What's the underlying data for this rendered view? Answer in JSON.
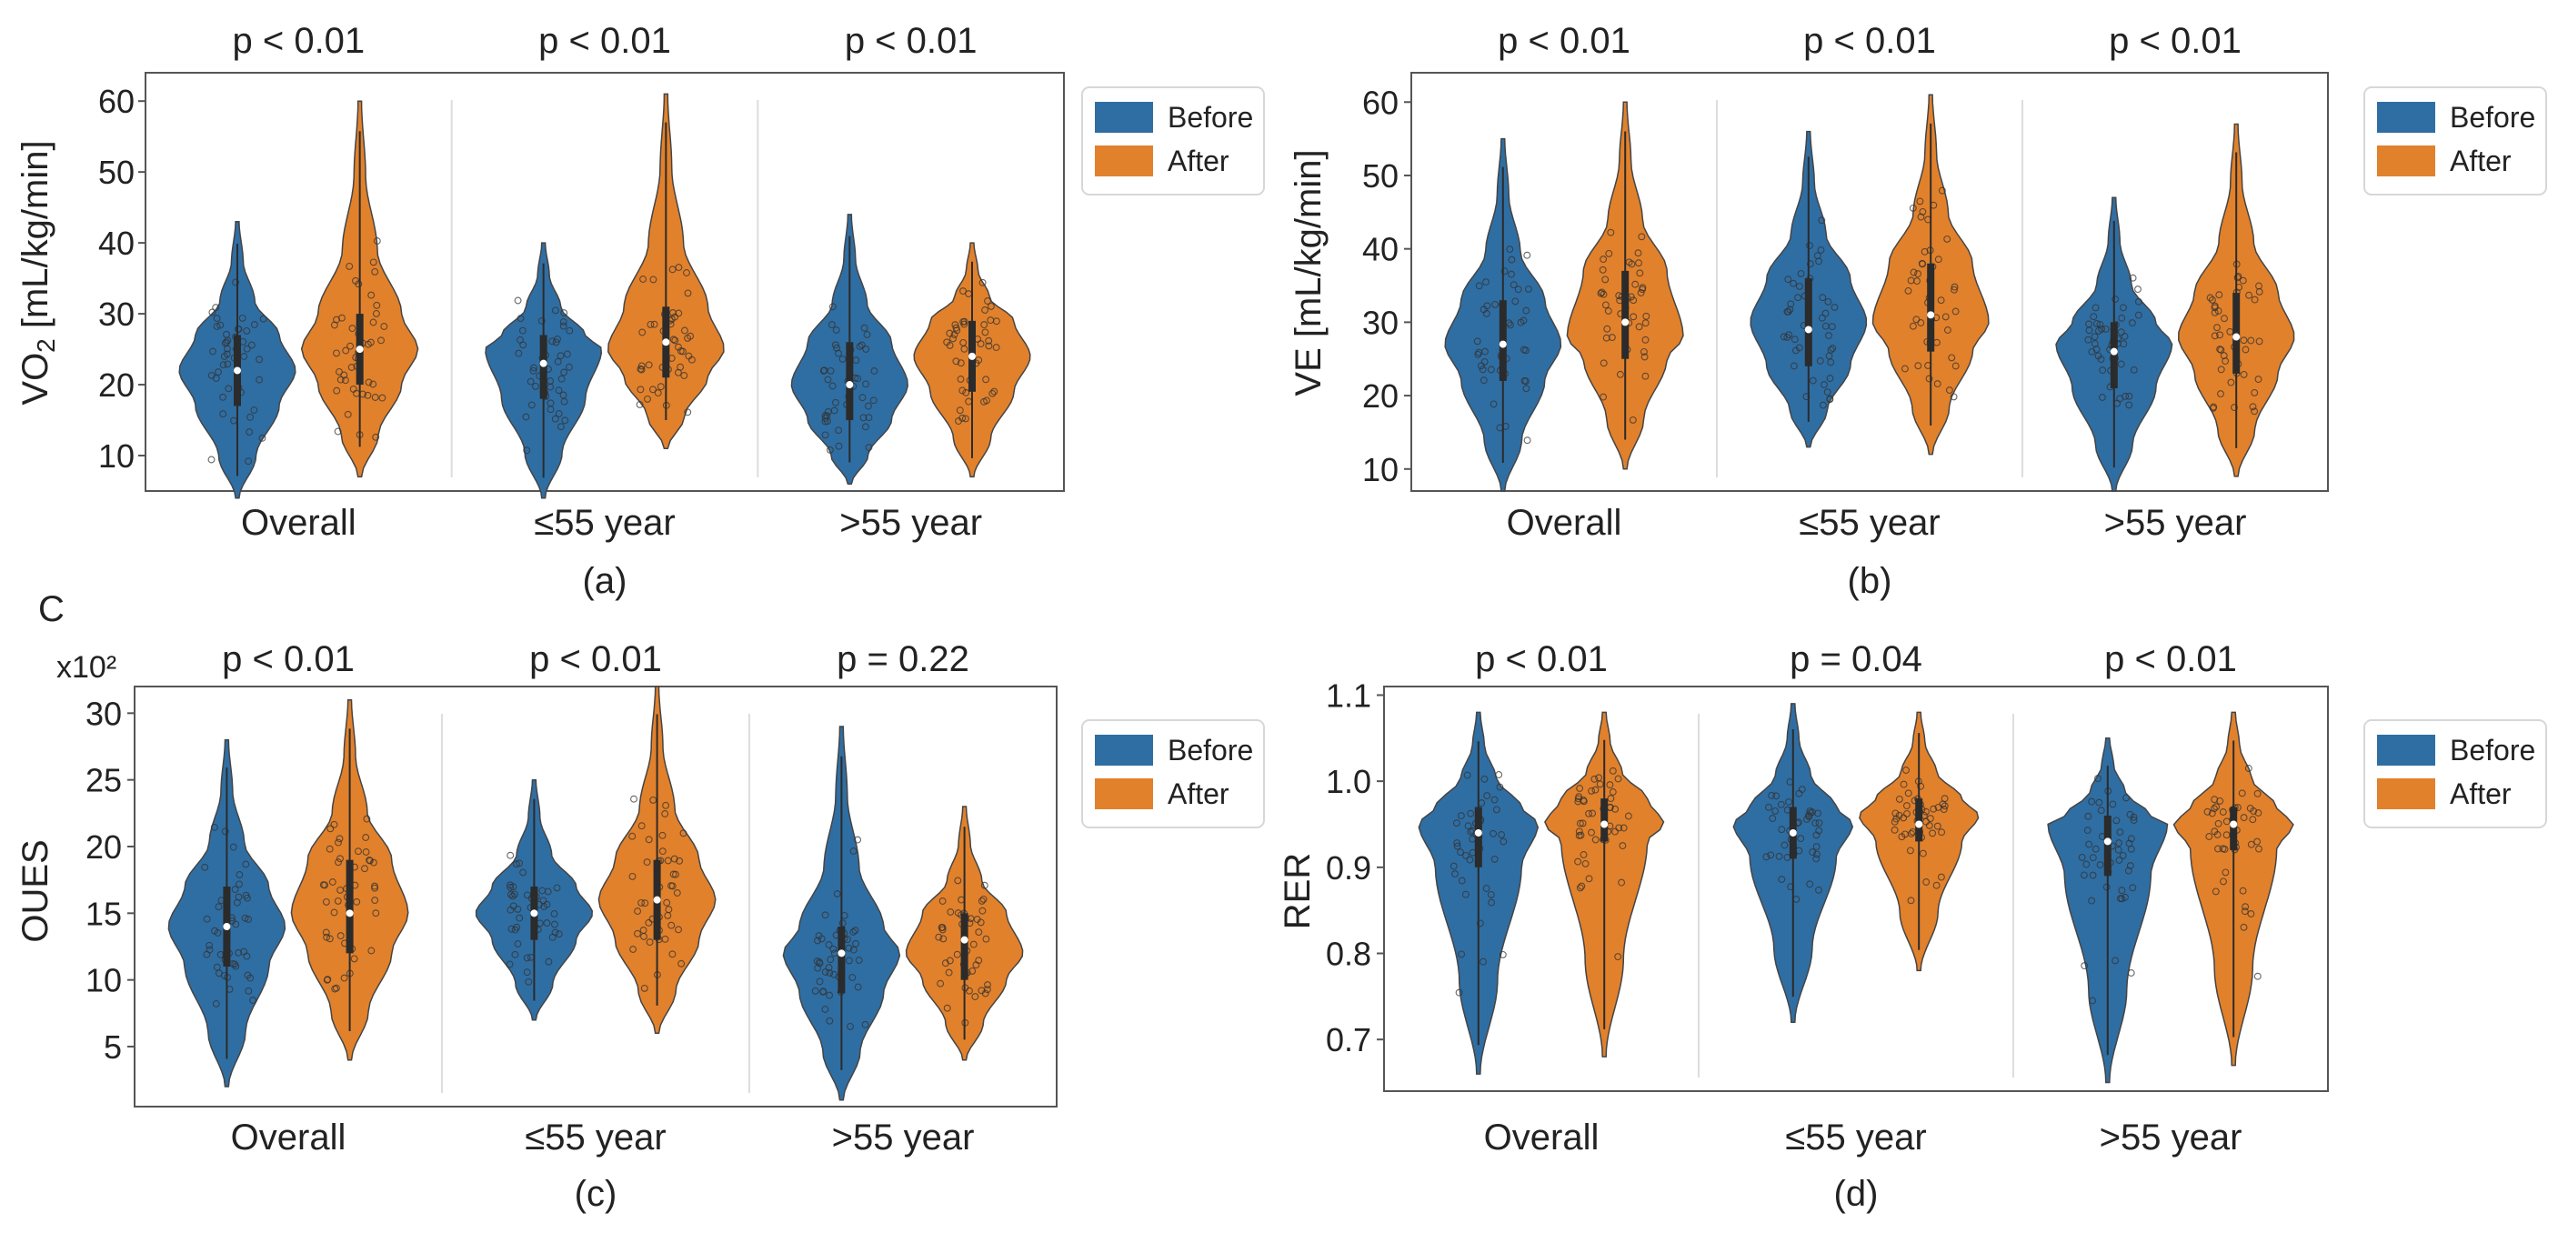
{
  "figure": {
    "side_label": "C",
    "legend_labels": [
      "Before",
      "After"
    ],
    "colors": {
      "before": "#2f6ea3",
      "after": "#e2812b",
      "frame": "#555555",
      "divider": "#dddddd",
      "dots": "#333333"
    }
  },
  "chart_data": [
    {
      "type": "violin",
      "panel": "(a)",
      "ylabel": "VO2 [mL/kg/min]",
      "ylabel_main": "VO",
      "ylabel_sub": "2",
      "ylabel_rest": " [mL/kg/min]",
      "ylim": [
        5,
        64
      ],
      "yticks": [
        10,
        20,
        30,
        40,
        50,
        60
      ],
      "categories": [
        "Overall",
        "≤55 year",
        ">55 year"
      ],
      "pvalues": [
        "p < 0.01",
        "p < 0.01",
        "p < 0.01"
      ],
      "series": [
        {
          "name": "Before",
          "groups": [
            {
              "min": 4,
              "q1": 17,
              "median": 22,
              "q3": 27,
              "max": 43,
              "mode": 22
            },
            {
              "min": 4,
              "q1": 18,
              "median": 23,
              "q3": 27,
              "max": 40,
              "mode": 25
            },
            {
              "min": 6,
              "q1": 15,
              "median": 20,
              "q3": 26,
              "max": 44,
              "mode": 20
            }
          ]
        },
        {
          "name": "After",
          "groups": [
            {
              "min": 7,
              "q1": 20,
              "median": 25,
              "q3": 30,
              "max": 60,
              "mode": 25
            },
            {
              "min": 11,
              "q1": 21,
              "median": 26,
              "q3": 31,
              "max": 61,
              "mode": 25
            },
            {
              "min": 7,
              "q1": 19,
              "median": 24,
              "q3": 29,
              "max": 40,
              "mode": 24
            }
          ]
        }
      ]
    },
    {
      "type": "violin",
      "panel": "(b)",
      "ylabel": "VE [mL/kg/min]",
      "ylim": [
        7,
        64
      ],
      "yticks": [
        10,
        20,
        30,
        40,
        50,
        60
      ],
      "categories": [
        "Overall",
        "≤55 year",
        ">55 year"
      ],
      "pvalues": [
        "p < 0.01",
        "p < 0.01",
        "p < 0.01"
      ],
      "series": [
        {
          "name": "Before",
          "groups": [
            {
              "min": 7,
              "q1": 22,
              "median": 27,
              "q3": 33,
              "max": 55,
              "mode": 27
            },
            {
              "min": 13,
              "q1": 24,
              "median": 29,
              "q3": 36,
              "max": 56,
              "mode": 30
            },
            {
              "min": 7,
              "q1": 21,
              "median": 26,
              "q3": 30,
              "max": 47,
              "mode": 27
            }
          ]
        },
        {
          "name": "After",
          "groups": [
            {
              "min": 10,
              "q1": 25,
              "median": 30,
              "q3": 37,
              "max": 60,
              "mode": 28
            },
            {
              "min": 12,
              "q1": 26,
              "median": 31,
              "q3": 38,
              "max": 61,
              "mode": 30
            },
            {
              "min": 9,
              "q1": 23,
              "median": 28,
              "q3": 34,
              "max": 57,
              "mode": 28
            }
          ]
        }
      ]
    },
    {
      "type": "violin",
      "panel": "(c)",
      "ylabel": "OUES",
      "yscale_label": "x10²",
      "ylim": [
        0.5,
        32
      ],
      "yticks": [
        5,
        10,
        15,
        20,
        25,
        30
      ],
      "categories": [
        "Overall",
        "≤55 year",
        ">55 year"
      ],
      "pvalues": [
        "p < 0.01",
        "p < 0.01",
        "p = 0.22"
      ],
      "series": [
        {
          "name": "Before",
          "groups": [
            {
              "min": 2,
              "q1": 11,
              "median": 14,
              "q3": 17,
              "max": 28,
              "mode": 14
            },
            {
              "min": 7,
              "q1": 13,
              "median": 15,
              "q3": 17,
              "max": 25,
              "mode": 15
            },
            {
              "min": 1,
              "q1": 9,
              "median": 12,
              "q3": 14,
              "max": 29,
              "mode": 12
            }
          ]
        },
        {
          "name": "After",
          "groups": [
            {
              "min": 4,
              "q1": 12,
              "median": 15,
              "q3": 19,
              "max": 31,
              "mode": 15
            },
            {
              "min": 6,
              "q1": 13,
              "median": 16,
              "q3": 19,
              "max": 32,
              "mode": 16
            },
            {
              "min": 4,
              "q1": 10,
              "median": 13,
              "q3": 15,
              "max": 23,
              "mode": 12
            }
          ]
        }
      ]
    },
    {
      "type": "violin",
      "panel": "(d)",
      "ylabel": "RER",
      "ylim": [
        0.64,
        1.11
      ],
      "yticks": [
        0.7,
        0.8,
        0.9,
        1.0,
        1.1
      ],
      "ytick_labels": [
        "0.7",
        "0.8",
        "0.9",
        "1.0",
        "1.1"
      ],
      "categories": [
        "Overall",
        "≤55 year",
        ">55 year"
      ],
      "pvalues": [
        "p < 0.01",
        "p = 0.04",
        "p < 0.01"
      ],
      "series": [
        {
          "name": "Before",
          "groups": [
            {
              "min": 0.66,
              "q1": 0.9,
              "median": 0.94,
              "q3": 0.97,
              "max": 1.08,
              "mode": 0.95
            },
            {
              "min": 0.72,
              "q1": 0.91,
              "median": 0.94,
              "q3": 0.97,
              "max": 1.09,
              "mode": 0.95
            },
            {
              "min": 0.65,
              "q1": 0.89,
              "median": 0.93,
              "q3": 0.96,
              "max": 1.05,
              "mode": 0.95
            }
          ]
        },
        {
          "name": "After",
          "groups": [
            {
              "min": 0.68,
              "q1": 0.93,
              "median": 0.95,
              "q3": 0.98,
              "max": 1.08,
              "mode": 0.95
            },
            {
              "min": 0.78,
              "q1": 0.93,
              "median": 0.95,
              "q3": 0.98,
              "max": 1.08,
              "mode": 0.96
            },
            {
              "min": 0.67,
              "q1": 0.92,
              "median": 0.95,
              "q3": 0.97,
              "max": 1.08,
              "mode": 0.95
            }
          ]
        }
      ]
    }
  ]
}
